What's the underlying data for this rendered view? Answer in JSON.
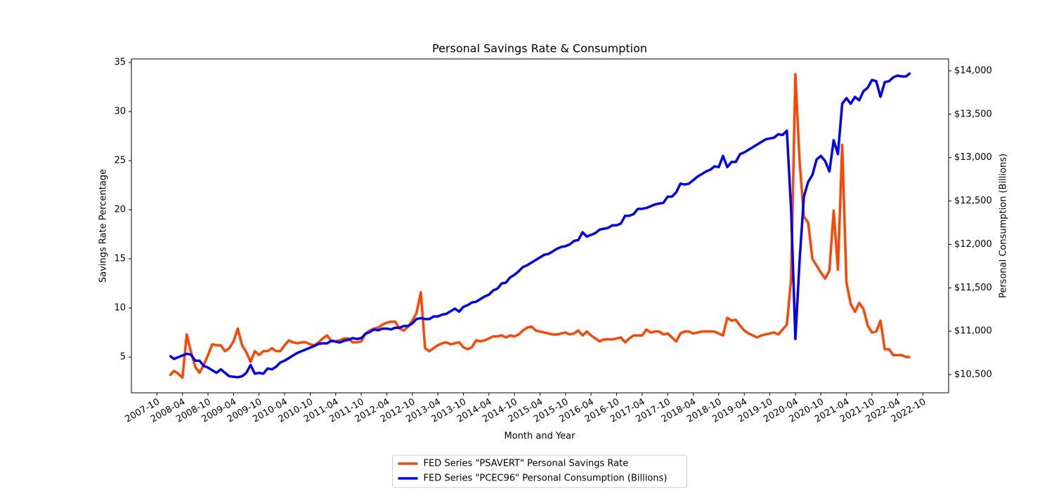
{
  "chart_data": {
    "type": "line",
    "title": "Personal Savings Rate & Consumption",
    "x_label": "Month and Year",
    "y_label": "Savings Rate Percentage",
    "y2_label": "Personal Consumption (Billions)",
    "x": [
      "2008-01",
      "2008-02",
      "2008-03",
      "2008-04",
      "2008-05",
      "2008-06",
      "2008-07",
      "2008-08",
      "2008-09",
      "2008-10",
      "2008-11",
      "2008-12",
      "2009-01",
      "2009-02",
      "2009-03",
      "2009-04",
      "2009-05",
      "2009-06",
      "2009-07",
      "2009-08",
      "2009-09",
      "2009-10",
      "2009-11",
      "2009-12",
      "2010-01",
      "2010-02",
      "2010-03",
      "2010-04",
      "2010-05",
      "2010-06",
      "2010-07",
      "2010-08",
      "2010-09",
      "2010-10",
      "2010-11",
      "2010-12",
      "2011-01",
      "2011-02",
      "2011-03",
      "2011-04",
      "2011-05",
      "2011-06",
      "2011-07",
      "2011-08",
      "2011-09",
      "2011-10",
      "2011-11",
      "2011-12",
      "2012-01",
      "2012-02",
      "2012-03",
      "2012-04",
      "2012-05",
      "2012-06",
      "2012-07",
      "2012-08",
      "2012-09",
      "2012-10",
      "2012-11",
      "2012-12",
      "2013-01",
      "2013-02",
      "2013-03",
      "2013-04",
      "2013-05",
      "2013-06",
      "2013-07",
      "2013-08",
      "2013-09",
      "2013-10",
      "2013-11",
      "2013-12",
      "2014-01",
      "2014-02",
      "2014-03",
      "2014-04",
      "2014-05",
      "2014-06",
      "2014-07",
      "2014-08",
      "2014-09",
      "2014-10",
      "2014-11",
      "2014-12",
      "2015-01",
      "2015-02",
      "2015-03",
      "2015-04",
      "2015-05",
      "2015-06",
      "2015-07",
      "2015-08",
      "2015-09",
      "2015-10",
      "2015-11",
      "2015-12",
      "2016-01",
      "2016-02",
      "2016-03",
      "2016-04",
      "2016-05",
      "2016-06",
      "2016-07",
      "2016-08",
      "2016-09",
      "2016-10",
      "2016-11",
      "2016-12",
      "2017-01",
      "2017-02",
      "2017-03",
      "2017-04",
      "2017-05",
      "2017-06",
      "2017-07",
      "2017-08",
      "2017-09",
      "2017-10",
      "2017-11",
      "2017-12",
      "2018-01",
      "2018-02",
      "2018-03",
      "2018-04",
      "2018-05",
      "2018-06",
      "2018-07",
      "2018-08",
      "2018-09",
      "2018-10",
      "2018-11",
      "2018-12",
      "2019-01",
      "2019-02",
      "2019-03",
      "2019-04",
      "2019-05",
      "2019-06",
      "2019-07",
      "2019-08",
      "2019-09",
      "2019-10",
      "2019-11",
      "2019-12",
      "2020-01",
      "2020-02",
      "2020-03",
      "2020-04",
      "2020-05",
      "2020-06",
      "2020-07",
      "2020-08",
      "2020-09",
      "2020-10",
      "2020-11",
      "2020-12",
      "2021-01",
      "2021-02",
      "2021-03",
      "2021-04",
      "2021-05",
      "2021-06",
      "2021-07",
      "2021-08",
      "2021-09",
      "2021-10",
      "2021-11",
      "2021-12",
      "2022-01",
      "2022-02",
      "2022-03",
      "2022-04",
      "2022-05",
      "2022-06",
      "2022-07"
    ],
    "series": [
      {
        "name": "FED Series \"PSAVERT\" Personal Savings Rate",
        "color": "#ff4500",
        "axis": "y",
        "values": [
          3.1,
          3.6,
          3.3,
          2.9,
          7.3,
          5.5,
          4.0,
          3.4,
          4.2,
          5.2,
          6.3,
          6.2,
          6.2,
          5.6,
          5.9,
          6.6,
          7.9,
          6.2,
          5.5,
          4.5,
          5.6,
          5.2,
          5.6,
          5.6,
          5.9,
          5.6,
          5.6,
          6.2,
          6.7,
          6.5,
          6.4,
          6.5,
          6.5,
          6.3,
          6.2,
          6.5,
          6.9,
          7.2,
          6.6,
          6.6,
          6.7,
          6.9,
          6.9,
          6.5,
          6.5,
          6.6,
          7.4,
          7.7,
          7.9,
          8.0,
          8.3,
          8.5,
          8.6,
          8.6,
          7.9,
          7.7,
          8.1,
          8.7,
          9.5,
          11.6,
          5.9,
          5.6,
          5.9,
          6.2,
          6.4,
          6.5,
          6.3,
          6.4,
          6.5,
          6.0,
          5.8,
          6.0,
          6.7,
          6.6,
          6.7,
          6.9,
          7.1,
          7.1,
          7.2,
          7.0,
          7.2,
          7.1,
          7.3,
          7.7,
          8.0,
          8.1,
          7.7,
          7.6,
          7.5,
          7.4,
          7.3,
          7.3,
          7.4,
          7.5,
          7.3,
          7.4,
          7.7,
          7.2,
          7.6,
          7.2,
          6.9,
          6.6,
          6.8,
          6.8,
          6.8,
          6.9,
          7.0,
          6.5,
          6.9,
          7.2,
          7.2,
          7.2,
          7.8,
          7.5,
          7.6,
          7.6,
          7.3,
          7.4,
          7.0,
          6.6,
          7.4,
          7.6,
          7.6,
          7.4,
          7.5,
          7.6,
          7.6,
          7.6,
          7.6,
          7.4,
          7.2,
          9.0,
          8.7,
          8.8,
          8.2,
          7.7,
          7.4,
          7.2,
          7.0,
          7.2,
          7.3,
          7.4,
          7.5,
          7.3,
          7.8,
          8.3,
          12.9,
          33.8,
          24.9,
          19.3,
          18.7,
          15.0,
          14.3,
          13.6,
          13.0,
          13.8,
          19.9,
          13.9,
          26.6,
          12.6,
          10.4,
          9.6,
          10.5,
          9.9,
          8.2,
          7.5,
          7.6,
          8.7,
          5.8,
          5.8,
          5.2,
          5.2,
          5.2,
          5.0,
          5.0
        ]
      },
      {
        "name": "FED Series \"PCEC96\" Personal Consumption (Billions)",
        "color": "#0000ff",
        "axis": "y2",
        "values": [
          10718,
          10680,
          10700,
          10720,
          10740,
          10730,
          10660,
          10660,
          10600,
          10580,
          10550,
          10520,
          10560,
          10520,
          10480,
          10475,
          10470,
          10480,
          10520,
          10610,
          10510,
          10520,
          10510,
          10570,
          10560,
          10590,
          10640,
          10660,
          10690,
          10720,
          10750,
          10770,
          10790,
          10810,
          10830,
          10855,
          10860,
          10860,
          10890,
          10880,
          10870,
          10890,
          10900,
          10920,
          10910,
          10920,
          10970,
          10990,
          11020,
          11010,
          11030,
          11030,
          11020,
          11040,
          11040,
          11060,
          11060,
          11090,
          11140,
          11150,
          11140,
          11140,
          11170,
          11170,
          11190,
          11200,
          11230,
          11260,
          11225,
          11280,
          11300,
          11330,
          11340,
          11370,
          11400,
          11420,
          11470,
          11490,
          11550,
          11560,
          11620,
          11650,
          11690,
          11740,
          11760,
          11790,
          11820,
          11850,
          11880,
          11890,
          11920,
          11950,
          11970,
          11980,
          12000,
          12040,
          12050,
          12140,
          12090,
          12110,
          12130,
          12170,
          12180,
          12190,
          12220,
          12220,
          12240,
          12330,
          12330,
          12350,
          12410,
          12410,
          12420,
          12440,
          12460,
          12470,
          12480,
          12550,
          12550,
          12600,
          12700,
          12690,
          12700,
          12740,
          12780,
          12810,
          12840,
          12860,
          12900,
          12890,
          13020,
          12890,
          12950,
          12950,
          13040,
          13060,
          13090,
          13120,
          13150,
          13180,
          13210,
          13220,
          13230,
          13270,
          13260,
          13310,
          12400,
          10910,
          11820,
          12550,
          12720,
          12800,
          12980,
          13020,
          12960,
          12840,
          13200,
          13040,
          13620,
          13685,
          13620,
          13700,
          13660,
          13765,
          13805,
          13895,
          13880,
          13700,
          13870,
          13880,
          13925,
          13945,
          13935,
          13935,
          13975
        ]
      }
    ],
    "xlim": [
      "2007-04",
      "2023-04"
    ],
    "xticks": [
      "2007-10",
      "2008-04",
      "2008-10",
      "2009-04",
      "2009-10",
      "2010-04",
      "2010-10",
      "2011-04",
      "2011-10",
      "2012-04",
      "2012-10",
      "2013-04",
      "2013-10",
      "2014-04",
      "2014-10",
      "2015-04",
      "2015-10",
      "2016-04",
      "2016-10",
      "2017-04",
      "2017-10",
      "2018-04",
      "2018-10",
      "2019-04",
      "2019-10",
      "2020-04",
      "2020-10",
      "2021-04",
      "2021-10",
      "2022-04",
      "2022-10"
    ],
    "ylim": [
      1.36,
      35.36
    ],
    "yticks": [
      5,
      10,
      15,
      20,
      25,
      30,
      35
    ],
    "y2lim": [
      10290,
      14137
    ],
    "y2ticks": [
      {
        "value": 10500,
        "label": "$10,500"
      },
      {
        "value": 11000,
        "label": "$11,000"
      },
      {
        "value": 11500,
        "label": "$11,500"
      },
      {
        "value": 12000,
        "label": "$12,000"
      },
      {
        "value": 12500,
        "label": "$12,500"
      },
      {
        "value": 13000,
        "label": "$13,000"
      },
      {
        "value": 13500,
        "label": "$13,500"
      },
      {
        "value": 14000,
        "label": "$14,000"
      }
    ],
    "grid": false,
    "legend": "bottom"
  }
}
